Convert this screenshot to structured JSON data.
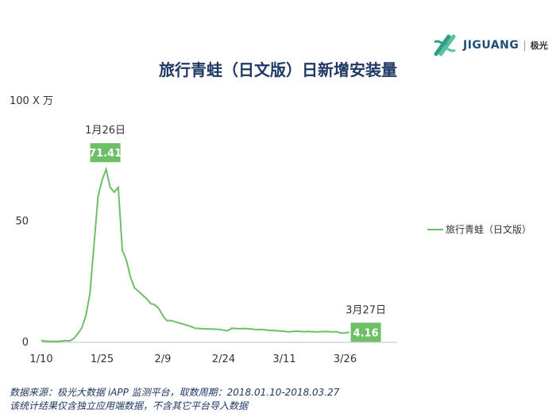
{
  "brand": {
    "name": "JIGUANG",
    "separator": "|",
    "cn": "极光",
    "color": "#2e9e87"
  },
  "source": {
    "line1": "数据来源：极光大数据 iAPP 监测平台，取数周期：2018.01.10-2018.03.27",
    "line2": "该统计结果仅含独立应用端数据，不含其它平台导入数据"
  },
  "chart_data": {
    "type": "line",
    "title": "旅行青蛙（日文版）日新增安装量",
    "ylabel": "100 X 万",
    "ylim": [
      0,
      100
    ],
    "yticks": [
      0,
      50,
      100
    ],
    "xticks": [
      "1/10",
      "1/25",
      "2/9",
      "2/24",
      "3/11",
      "3/26"
    ],
    "grid": false,
    "legend_position": "right",
    "series": [
      {
        "name": "旅行青蛙（日文版）",
        "color": "#6dbf67",
        "x": [
          "1/10",
          "1/11",
          "1/12",
          "1/13",
          "1/14",
          "1/15",
          "1/16",
          "1/17",
          "1/18",
          "1/19",
          "1/20",
          "1/21",
          "1/22",
          "1/23",
          "1/24",
          "1/25",
          "1/26",
          "1/27",
          "1/28",
          "1/29",
          "1/30",
          "1/31",
          "2/1",
          "2/2",
          "2/3",
          "2/4",
          "2/5",
          "2/6",
          "2/7",
          "2/8",
          "2/9",
          "2/10",
          "2/11",
          "2/12",
          "2/13",
          "2/14",
          "2/15",
          "2/16",
          "2/17",
          "2/18",
          "2/19",
          "2/20",
          "2/21",
          "2/22",
          "2/23",
          "2/24",
          "2/25",
          "2/26",
          "2/27",
          "2/28",
          "3/1",
          "3/2",
          "3/3",
          "3/4",
          "3/5",
          "3/6",
          "3/7",
          "3/8",
          "3/9",
          "3/10",
          "3/11",
          "3/12",
          "3/13",
          "3/14",
          "3/15",
          "3/16",
          "3/17",
          "3/18",
          "3/19",
          "3/20",
          "3/21",
          "3/22",
          "3/23",
          "3/24",
          "3/25",
          "3/26",
          "3/27"
        ],
        "values": [
          0.8,
          0.5,
          0.4,
          0.4,
          0.4,
          0.5,
          0.8,
          0.6,
          1.5,
          3.5,
          6.0,
          11.0,
          20.0,
          40.0,
          60.0,
          67.0,
          71.41,
          64.0,
          62.0,
          64.0,
          38.0,
          34.0,
          27.0,
          22.5,
          21.0,
          19.5,
          18.0,
          16.0,
          15.5,
          14.0,
          11.0,
          9.0,
          9.0,
          8.5,
          8.0,
          7.5,
          7.0,
          6.5,
          5.8,
          5.7,
          5.6,
          5.5,
          5.5,
          5.4,
          5.3,
          5.0,
          4.8,
          5.8,
          5.7,
          5.6,
          5.7,
          5.6,
          5.5,
          5.2,
          5.3,
          5.2,
          5.0,
          4.9,
          4.8,
          4.7,
          4.6,
          4.3,
          4.5,
          4.6,
          4.5,
          4.4,
          4.5,
          4.4,
          4.3,
          4.4,
          4.5,
          4.4,
          4.3,
          4.4,
          3.8,
          3.9,
          4.16
        ]
      }
    ],
    "annotations": [
      {
        "date_label": "1月26日",
        "x": "1/26",
        "value": "71.41"
      },
      {
        "date_label": "3月27日",
        "x": "3/27",
        "value": "4.16"
      }
    ]
  }
}
